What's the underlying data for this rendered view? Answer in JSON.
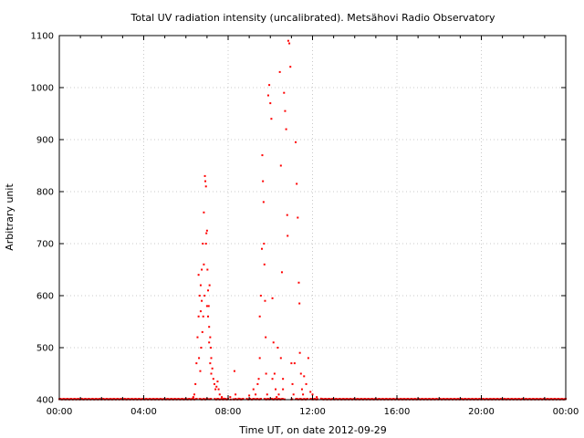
{
  "chart_data": {
    "type": "scatter",
    "title": "Total UV radiation intensity (uncalibrated). Metsähovi Radio Observatory",
    "xlabel": "Time UT, on date 2012-09-29",
    "ylabel": "Arbitrary unit",
    "xlim_hours": [
      0,
      24
    ],
    "ylim": [
      400,
      1100
    ],
    "x_ticks": [
      {
        "hours": 0,
        "label": "00:00"
      },
      {
        "hours": 4,
        "label": "04:00"
      },
      {
        "hours": 8,
        "label": "08:00"
      },
      {
        "hours": 12,
        "label": "12:00"
      },
      {
        "hours": 16,
        "label": "16:00"
      },
      {
        "hours": 20,
        "label": "20:00"
      },
      {
        "hours": 24,
        "label": "00:00"
      }
    ],
    "y_ticks": [
      400,
      500,
      600,
      700,
      800,
      900,
      1000,
      1100
    ],
    "grid": true,
    "marker_color": "#ff0000",
    "baseline": {
      "from_hours": 0,
      "to_hours": 24,
      "value": 401
    },
    "series": [
      {
        "points_hours": [
          [
            6.3,
            402
          ],
          [
            6.35,
            405
          ],
          [
            6.4,
            410
          ],
          [
            6.45,
            430
          ],
          [
            6.5,
            470
          ],
          [
            6.55,
            520
          ],
          [
            6.6,
            560
          ],
          [
            6.62,
            480
          ],
          [
            6.65,
            600
          ],
          [
            6.68,
            455
          ],
          [
            6.7,
            620
          ],
          [
            6.72,
            500
          ],
          [
            6.75,
            650
          ],
          [
            6.78,
            530
          ],
          [
            6.8,
            700
          ],
          [
            6.82,
            560
          ],
          [
            6.85,
            760
          ],
          [
            6.88,
            600
          ],
          [
            6.9,
            830
          ],
          [
            6.92,
            820
          ],
          [
            6.95,
            810
          ],
          [
            6.97,
            720
          ],
          [
            7.0,
            725
          ],
          [
            7.02,
            650
          ],
          [
            7.05,
            610
          ],
          [
            7.08,
            580
          ],
          [
            7.1,
            540
          ],
          [
            7.12,
            620
          ],
          [
            7.15,
            520
          ],
          [
            7.18,
            500
          ],
          [
            7.2,
            480
          ],
          [
            7.25,
            460
          ],
          [
            7.3,
            440
          ],
          [
            7.35,
            430
          ],
          [
            7.4,
            420
          ],
          [
            7.45,
            425
          ],
          [
            7.5,
            435
          ],
          [
            7.55,
            420
          ],
          [
            7.6,
            410
          ],
          [
            7.7,
            405
          ],
          [
            7.8,
            402
          ],
          [
            6.6,
            640
          ],
          [
            6.7,
            570
          ],
          [
            6.75,
            590
          ],
          [
            6.85,
            660
          ],
          [
            6.95,
            700
          ],
          [
            7.0,
            580
          ],
          [
            7.05,
            560
          ],
          [
            7.1,
            510
          ],
          [
            7.15,
            470
          ],
          [
            7.2,
            450
          ],
          [
            8.1,
            405
          ],
          [
            8.3,
            455
          ],
          [
            8.35,
            410
          ],
          [
            8.5,
            402
          ],
          [
            9.0,
            408
          ],
          [
            9.2,
            420
          ],
          [
            9.3,
            410
          ],
          [
            9.4,
            430
          ],
          [
            9.45,
            440
          ],
          [
            9.5,
            480
          ],
          [
            9.55,
            600
          ],
          [
            9.6,
            690
          ],
          [
            9.62,
            870
          ],
          [
            9.65,
            820
          ],
          [
            9.68,
            780
          ],
          [
            9.7,
            700
          ],
          [
            9.72,
            660
          ],
          [
            9.75,
            590
          ],
          [
            9.78,
            520
          ],
          [
            9.8,
            450
          ],
          [
            9.85,
            410
          ],
          [
            9.9,
            985
          ],
          [
            9.95,
            1005
          ],
          [
            10.0,
            970
          ],
          [
            10.05,
            940
          ],
          [
            10.1,
            595
          ],
          [
            10.15,
            510
          ],
          [
            10.2,
            450
          ],
          [
            10.25,
            420
          ],
          [
            10.3,
            405
          ],
          [
            10.4,
            410
          ],
          [
            10.45,
            1030
          ],
          [
            10.5,
            850
          ],
          [
            10.55,
            645
          ],
          [
            10.6,
            420
          ],
          [
            10.65,
            990
          ],
          [
            10.7,
            955
          ],
          [
            10.75,
            920
          ],
          [
            10.8,
            755
          ],
          [
            10.82,
            715
          ],
          [
            10.85,
            1090
          ],
          [
            10.9,
            1085
          ],
          [
            10.95,
            1040
          ],
          [
            11.0,
            470
          ],
          [
            11.05,
            430
          ],
          [
            11.1,
            410
          ],
          [
            11.2,
            895
          ],
          [
            11.25,
            815
          ],
          [
            11.3,
            750
          ],
          [
            11.35,
            625
          ],
          [
            11.38,
            585
          ],
          [
            11.4,
            490
          ],
          [
            11.45,
            450
          ],
          [
            11.5,
            420
          ],
          [
            11.55,
            410
          ],
          [
            11.6,
            445
          ],
          [
            11.7,
            430
          ],
          [
            11.8,
            480
          ],
          [
            11.9,
            415
          ],
          [
            12.0,
            410
          ],
          [
            12.2,
            405
          ],
          [
            12.4,
            402
          ],
          [
            10.35,
            500
          ],
          [
            10.5,
            480
          ],
          [
            11.15,
            470
          ],
          [
            9.5,
            560
          ],
          [
            10.1,
            440
          ],
          [
            10.6,
            440
          ]
        ]
      }
    ]
  }
}
